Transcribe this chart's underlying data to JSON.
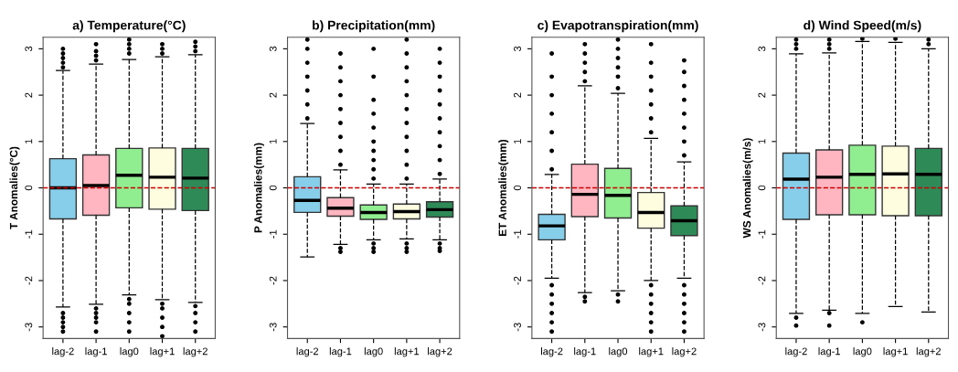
{
  "chart_data": [
    {
      "type": "box",
      "title": "a) Temperature(°C)",
      "ylabel": "T Anomalies(°C)",
      "categories": [
        "lag-2",
        "lag-1",
        "lag0",
        "lag+1",
        "lag+2"
      ],
      "colors": [
        "#87ceeb",
        "#ffb6c1",
        "#90ee90",
        "#fffde0",
        "#2e8b57"
      ],
      "ylim": [
        -3.25,
        3.25
      ],
      "yticks": [
        -3,
        -2,
        -1,
        0,
        1,
        2,
        3
      ],
      "grid": false,
      "ref_lines": [
        {
          "axis": "y",
          "value": 0,
          "label": null,
          "color": "#cc0000",
          "line_style": "dashed"
        }
      ],
      "boxes": [
        {
          "low": -2.57,
          "q1": -0.67,
          "median": 0.0,
          "q3": 0.63,
          "high": 2.53,
          "outliers": [
            2.6,
            2.7,
            2.8,
            2.9,
            3.0,
            -2.7,
            -2.8,
            -2.9,
            -3.0,
            -3.1
          ]
        },
        {
          "low": -2.51,
          "q1": -0.59,
          "median": 0.05,
          "q3": 0.71,
          "high": 2.67,
          "outliers": [
            2.75,
            2.85,
            2.95,
            3.1,
            -2.6,
            -2.7,
            -2.8,
            -2.9,
            -3.1
          ]
        },
        {
          "low": -2.31,
          "q1": -0.43,
          "median": 0.27,
          "q3": 0.85,
          "high": 2.77,
          "outliers": [
            2.9,
            3.0,
            3.1,
            3.2,
            -2.4,
            -2.5,
            -2.7,
            -2.9,
            -3.1
          ]
        },
        {
          "low": -2.41,
          "q1": -0.46,
          "median": 0.23,
          "q3": 0.86,
          "high": 2.83,
          "outliers": [
            2.9,
            3.0,
            3.1,
            -2.5,
            -2.6,
            -2.8,
            -3.0,
            -3.2
          ]
        },
        {
          "low": -2.47,
          "q1": -0.49,
          "median": 0.21,
          "q3": 0.85,
          "high": 2.87,
          "outliers": [
            2.95,
            3.05,
            3.15,
            -2.55,
            -2.7,
            -2.9,
            -3.1
          ]
        }
      ]
    },
    {
      "type": "box",
      "title": "b) Precipitation(mm)",
      "ylabel": "P Anomalies(mm)",
      "categories": [
        "lag-2",
        "lag-1",
        "lag0",
        "lag+1",
        "lag+2"
      ],
      "colors": [
        "#87ceeb",
        "#ffb6c1",
        "#90ee90",
        "#fffde0",
        "#2e8b57"
      ],
      "ylim": [
        -3.25,
        3.25
      ],
      "yticks": [
        -3,
        -2,
        -1,
        0,
        1,
        2,
        3
      ],
      "grid": false,
      "ref_lines": [
        {
          "axis": "y",
          "value": 0,
          "label": null,
          "color": "#cc0000",
          "line_style": "dashed"
        }
      ],
      "boxes": [
        {
          "low": -1.49,
          "q1": -0.53,
          "median": -0.27,
          "q3": 0.24,
          "high": 1.39,
          "outliers": [
            1.5,
            1.8,
            2.1,
            2.4,
            2.7,
            3.0,
            3.2
          ]
        },
        {
          "low": -1.22,
          "q1": -0.61,
          "median": -0.44,
          "q3": -0.21,
          "high": 0.39,
          "outliers": [
            0.5,
            0.8,
            1.1,
            1.4,
            1.7,
            2.0,
            2.3,
            2.6,
            2.9,
            -1.3,
            -1.38
          ]
        },
        {
          "low": -1.12,
          "q1": -0.68,
          "median": -0.53,
          "q3": -0.37,
          "high": 0.08,
          "outliers": [
            0.2,
            0.4,
            0.6,
            0.8,
            1.0,
            1.3,
            1.6,
            1.9,
            2.4,
            3.0,
            -1.2,
            -1.3,
            -1.38
          ]
        },
        {
          "low": -1.1,
          "q1": -0.67,
          "median": -0.51,
          "q3": -0.35,
          "high": 0.08,
          "outliers": [
            0.2,
            0.5,
            0.8,
            1.1,
            1.4,
            1.7,
            2.0,
            2.3,
            2.6,
            2.9,
            3.2,
            -1.2,
            -1.3,
            -1.38
          ]
        },
        {
          "low": -1.12,
          "q1": -0.63,
          "median": -0.47,
          "q3": -0.3,
          "high": 0.19,
          "outliers": [
            0.3,
            0.6,
            0.9,
            1.2,
            1.5,
            1.8,
            2.1,
            2.4,
            2.7,
            3.0,
            -1.2,
            -1.3,
            -1.36
          ]
        }
      ]
    },
    {
      "type": "box",
      "title": "c) Evapotranspiration(mm)",
      "ylabel": "ET Anomalies(mm)",
      "categories": [
        "lag-2",
        "lag-1",
        "lag0",
        "lag+1",
        "lag+2"
      ],
      "colors": [
        "#87ceeb",
        "#ffb6c1",
        "#90ee90",
        "#fffde0",
        "#2e8b57"
      ],
      "ylim": [
        -3.25,
        3.25
      ],
      "yticks": [
        -3,
        -2,
        -1,
        0,
        1,
        2,
        3
      ],
      "grid": false,
      "ref_lines": [
        {
          "axis": "y",
          "value": 0,
          "label": null,
          "color": "#cc0000",
          "line_style": "dashed"
        }
      ],
      "boxes": [
        {
          "low": -1.95,
          "q1": -1.12,
          "median": -0.82,
          "q3": -0.57,
          "high": 0.29,
          "outliers": [
            0.4,
            0.8,
            1.2,
            1.6,
            2.0,
            2.4,
            2.9,
            -2.1,
            -2.3,
            -2.5,
            -2.7,
            -2.9,
            -3.1
          ]
        },
        {
          "low": -2.26,
          "q1": -0.62,
          "median": -0.14,
          "q3": 0.51,
          "high": 2.2,
          "outliers": [
            2.3,
            2.5,
            2.7,
            2.9,
            3.1,
            -2.35,
            -2.45
          ]
        },
        {
          "low": -2.22,
          "q1": -0.65,
          "median": -0.16,
          "q3": 0.42,
          "high": 2.04,
          "outliers": [
            2.15,
            2.4,
            2.6,
            2.8,
            3.0,
            3.2,
            -2.3,
            -2.45
          ]
        },
        {
          "low": -2.0,
          "q1": -0.87,
          "median": -0.53,
          "q3": -0.1,
          "high": 1.07,
          "outliers": [
            1.2,
            1.5,
            1.8,
            2.1,
            2.4,
            2.7,
            3.1,
            -2.1,
            -2.3,
            -2.5,
            -2.7,
            -2.9,
            -3.1
          ]
        },
        {
          "low": -1.95,
          "q1": -1.03,
          "median": -0.71,
          "q3": -0.39,
          "high": 0.56,
          "outliers": [
            0.7,
            1.0,
            1.3,
            1.6,
            1.9,
            2.2,
            2.5,
            2.75,
            -2.1,
            -2.3,
            -2.5,
            -2.7,
            -2.9,
            -3.1
          ]
        }
      ]
    },
    {
      "type": "box",
      "title": "d) Wind Speed(m/s)",
      "ylabel": "WS Anomalies(m/s)",
      "categories": [
        "lag-2",
        "lag-1",
        "lag0",
        "lag+1",
        "lag+2"
      ],
      "colors": [
        "#87ceeb",
        "#ffb6c1",
        "#90ee90",
        "#fffde0",
        "#2e8b57"
      ],
      "ylim": [
        -3.25,
        3.25
      ],
      "yticks": [
        -3,
        -2,
        -1,
        0,
        1,
        2,
        3
      ],
      "grid": false,
      "ref_lines": [
        {
          "axis": "y",
          "value": 0,
          "label": null,
          "color": "#cc0000",
          "line_style": "dashed"
        }
      ],
      "boxes": [
        {
          "low": -2.71,
          "q1": -0.68,
          "median": 0.19,
          "q3": 0.75,
          "high": 2.89,
          "outliers": [
            3.0,
            3.1,
            3.2,
            -2.8,
            -2.97
          ]
        },
        {
          "low": -2.64,
          "q1": -0.58,
          "median": 0.23,
          "q3": 0.82,
          "high": 2.91,
          "outliers": [
            3.0,
            3.1,
            3.2,
            -2.7,
            -2.97
          ]
        },
        {
          "low": -2.71,
          "q1": -0.58,
          "median": 0.29,
          "q3": 0.92,
          "high": 3.16,
          "outliers": [
            3.22,
            -2.9
          ]
        },
        {
          "low": -2.56,
          "q1": -0.6,
          "median": 0.3,
          "q3": 0.9,
          "high": 3.14,
          "outliers": [
            3.22
          ]
        },
        {
          "low": -2.68,
          "q1": -0.6,
          "median": 0.29,
          "q3": 0.85,
          "high": 3.0,
          "outliers": [
            3.1,
            3.2
          ]
        }
      ]
    }
  ]
}
